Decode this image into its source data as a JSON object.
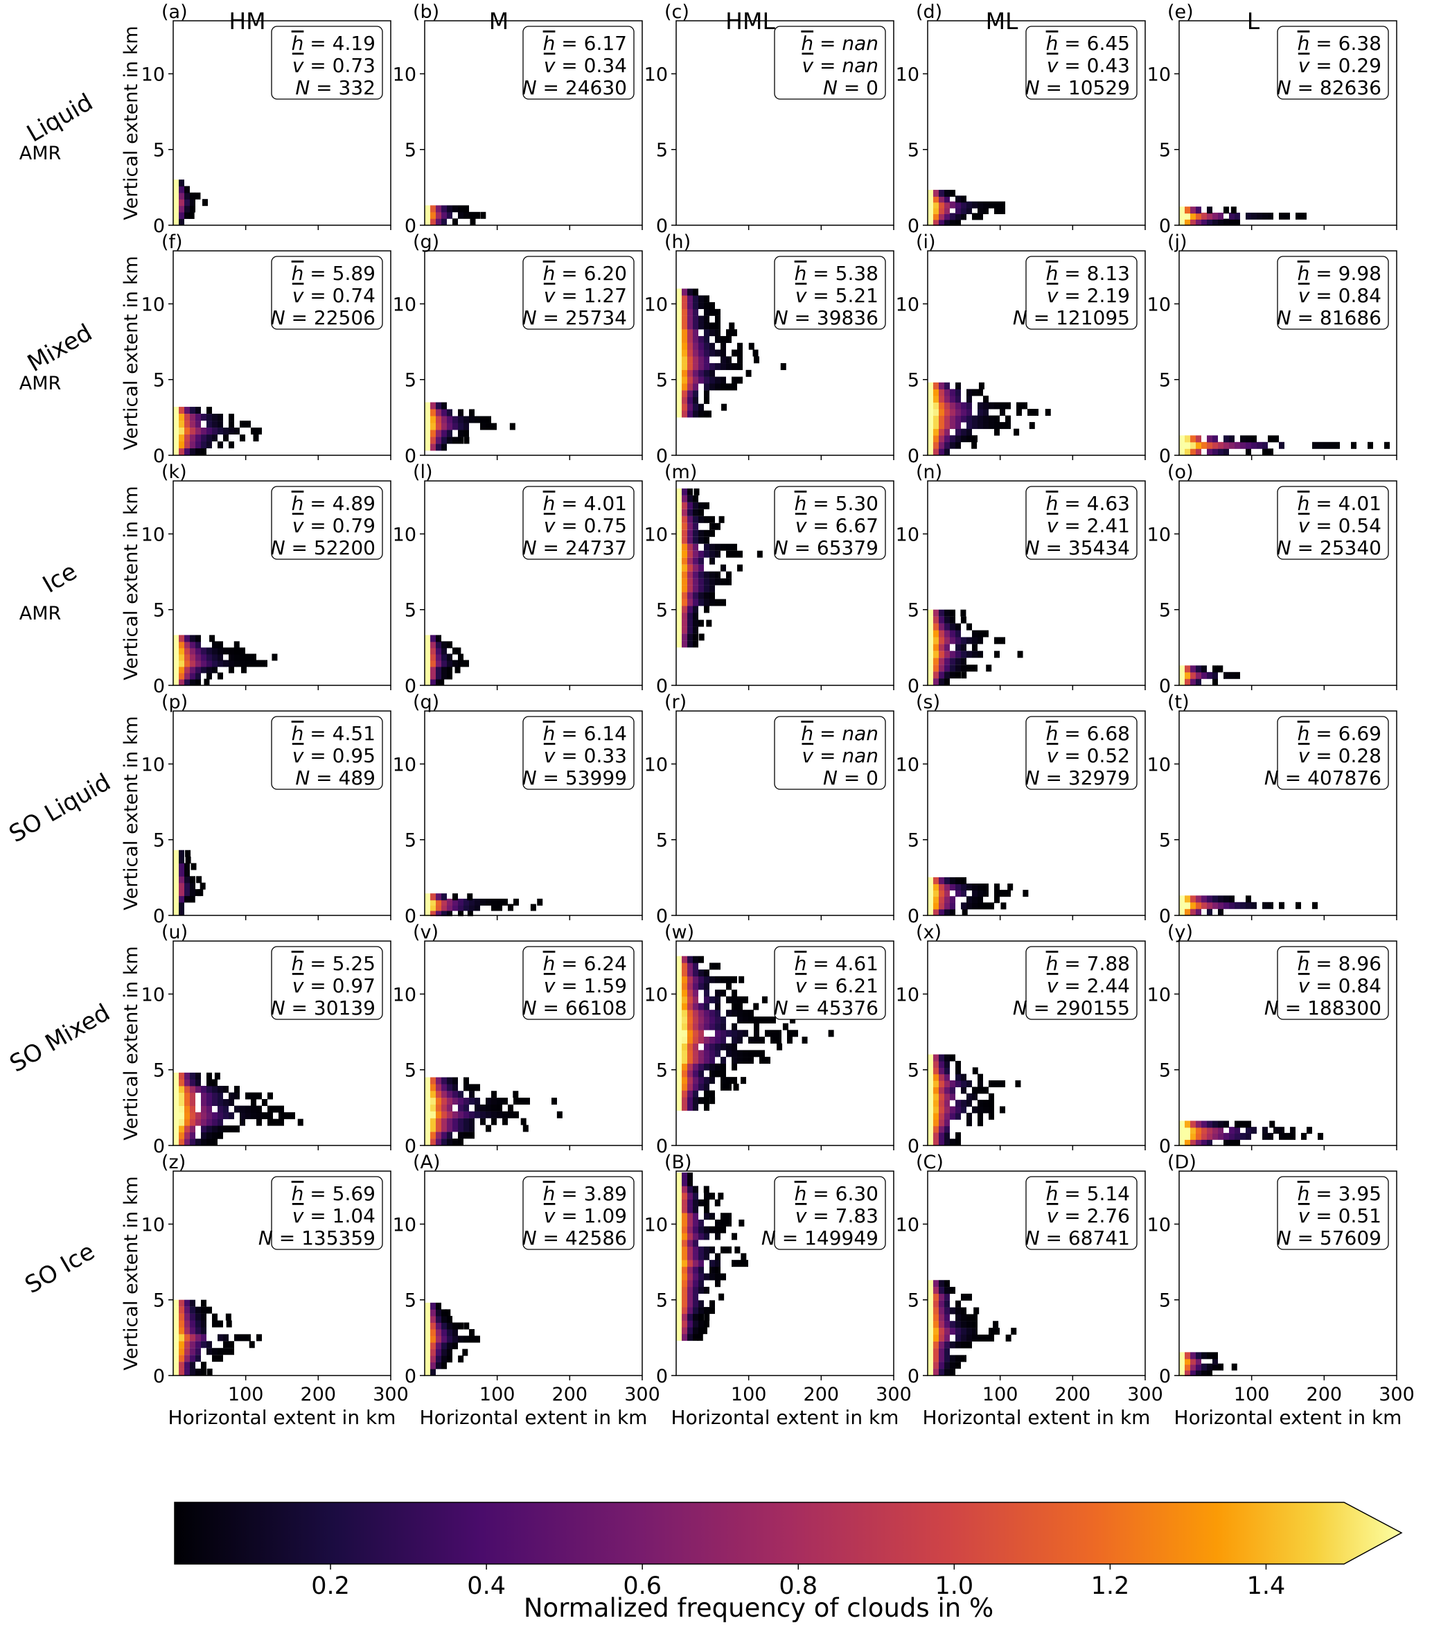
{
  "figure": {
    "columns": [
      "HM",
      "M",
      "HML",
      "ML",
      "L"
    ],
    "row_labels": [
      {
        "main": "Liquid",
        "sub": "AMR"
      },
      {
        "main": "Mixed",
        "sub": "AMR"
      },
      {
        "main": "Ice",
        "sub": "AMR"
      },
      {
        "main": "SO Liquid",
        "sub": ""
      },
      {
        "main": "SO Mixed",
        "sub": ""
      },
      {
        "main": "SO Ice",
        "sub": ""
      }
    ],
    "ylabel": "Vertical extent in km",
    "xlabel": "Horizontal extent in km",
    "colorbar": {
      "label": "Normalized frequency of clouds in %",
      "ticks": [
        "0.2",
        "0.4",
        "0.6",
        "0.8",
        "1.0",
        "1.2",
        "1.4"
      ],
      "tick_values": [
        0.2,
        0.4,
        0.6,
        0.8,
        1.0,
        1.2,
        1.4
      ],
      "range": [
        0,
        1.6
      ],
      "extend": "max",
      "colormap": "inferno",
      "colors": [
        "#000004",
        "#420a68",
        "#932667",
        "#dd513a",
        "#fca50a",
        "#fcffa4"
      ]
    },
    "stat_labels": {
      "h": "h",
      "v": "v",
      "N": "N"
    }
  },
  "chart_data": [
    {
      "panel": "(a)",
      "row": "AMR Liquid",
      "column": "HM",
      "type": "heatmap",
      "xlim": [
        0,
        300
      ],
      "ylim": [
        0,
        13.5
      ],
      "x_ticks": [
        100,
        200,
        300
      ],
      "y_ticks": [
        0,
        5,
        10
      ],
      "h": "4.19",
      "v": "0.73",
      "N": "332",
      "extent": {
        "x_max": 40,
        "y_top": 3.0,
        "y_bottom": 0,
        "spread": 0.3
      }
    },
    {
      "panel": "(b)",
      "row": "AMR Liquid",
      "column": "M",
      "type": "heatmap",
      "xlim": [
        0,
        300
      ],
      "ylim": [
        0,
        13.5
      ],
      "x_ticks": [
        100,
        200,
        300
      ],
      "y_ticks": [
        0,
        5,
        10
      ],
      "h": "6.17",
      "v": "0.34",
      "N": "24630",
      "extent": {
        "x_max": 115,
        "y_top": 1.3,
        "y_bottom": 0,
        "spread": 0.4
      }
    },
    {
      "panel": "(c)",
      "row": "AMR Liquid",
      "column": "HML",
      "type": "heatmap",
      "xlim": [
        0,
        300
      ],
      "ylim": [
        0,
        13.5
      ],
      "x_ticks": [
        100,
        200,
        300
      ],
      "y_ticks": [
        0,
        5,
        10
      ],
      "h": "nan",
      "v": "nan",
      "N": "0",
      "extent": null
    },
    {
      "panel": "(d)",
      "row": "AMR Liquid",
      "column": "ML",
      "type": "heatmap",
      "xlim": [
        0,
        300
      ],
      "ylim": [
        0,
        13.5
      ],
      "x_ticks": [
        100,
        200,
        300
      ],
      "y_ticks": [
        0,
        5,
        10
      ],
      "h": "6.45",
      "v": "0.43",
      "N": "10529",
      "extent": {
        "x_max": 150,
        "y_top": 2.3,
        "y_bottom": 0,
        "spread": 0.35
      }
    },
    {
      "panel": "(e)",
      "row": "AMR Liquid",
      "column": "L",
      "type": "heatmap",
      "xlim": [
        0,
        300
      ],
      "ylim": [
        0,
        13.5
      ],
      "x_ticks": [
        100,
        200,
        300
      ],
      "y_ticks": [
        0,
        5,
        10
      ],
      "h": "6.38",
      "v": "0.29",
      "N": "82636",
      "extent": {
        "x_max": 200,
        "y_top": 1.2,
        "y_bottom": 0,
        "spread": 0.5
      }
    },
    {
      "panel": "(f)",
      "row": "AMR Mixed",
      "column": "HM",
      "type": "heatmap",
      "xlim": [
        0,
        300
      ],
      "ylim": [
        0,
        13.5
      ],
      "x_ticks": [
        100,
        200,
        300
      ],
      "y_ticks": [
        0,
        5,
        10
      ],
      "h": "5.89",
      "v": "0.74",
      "N": "22506",
      "extent": {
        "x_max": 170,
        "y_top": 3.2,
        "y_bottom": 0,
        "spread": 0.4
      }
    },
    {
      "panel": "(g)",
      "row": "AMR Mixed",
      "column": "M",
      "type": "heatmap",
      "xlim": [
        0,
        300
      ],
      "ylim": [
        0,
        13.5
      ],
      "x_ticks": [
        100,
        200,
        300
      ],
      "y_ticks": [
        0,
        5,
        10
      ],
      "h": "6.20",
      "v": "1.27",
      "N": "25734",
      "extent": {
        "x_max": 130,
        "y_top": 3.5,
        "y_bottom": 0.3,
        "spread": 0.5
      }
    },
    {
      "panel": "(h)",
      "row": "AMR Mixed",
      "column": "HML",
      "type": "heatmap",
      "xlim": [
        0,
        300
      ],
      "ylim": [
        0,
        13.5
      ],
      "x_ticks": [
        100,
        200,
        300
      ],
      "y_ticks": [
        0,
        5,
        10
      ],
      "h": "5.38",
      "v": "5.21",
      "N": "39836",
      "extent": {
        "x_max": 140,
        "y_top": 11.0,
        "y_bottom": 2.5,
        "spread": 0.5
      }
    },
    {
      "panel": "(i)",
      "row": "AMR Mixed",
      "column": "ML",
      "type": "heatmap",
      "xlim": [
        0,
        300
      ],
      "ylim": [
        0,
        13.5
      ],
      "x_ticks": [
        100,
        200,
        300
      ],
      "y_ticks": [
        0,
        5,
        10
      ],
      "h": "8.13",
      "v": "2.19",
      "N": "121095",
      "extent": {
        "x_max": 190,
        "y_top": 4.8,
        "y_bottom": 0,
        "spread": 0.6
      }
    },
    {
      "panel": "(j)",
      "row": "AMR Mixed",
      "column": "L",
      "type": "heatmap",
      "xlim": [
        0,
        300
      ],
      "ylim": [
        0,
        13.5
      ],
      "x_ticks": [
        100,
        200,
        300
      ],
      "y_ticks": [
        0,
        5,
        10
      ],
      "h": "9.98",
      "v": "0.84",
      "N": "81686",
      "extent": {
        "x_max": 290,
        "y_top": 1.3,
        "y_bottom": 0,
        "spread": 0.6
      }
    },
    {
      "panel": "(k)",
      "row": "AMR Ice",
      "column": "HM",
      "type": "heatmap",
      "xlim": [
        0,
        300
      ],
      "ylim": [
        0,
        13.5
      ],
      "x_ticks": [
        100,
        200,
        300
      ],
      "y_ticks": [
        0,
        5,
        10
      ],
      "h": "4.89",
      "v": "0.79",
      "N": "52200",
      "extent": {
        "x_max": 160,
        "y_top": 3.3,
        "y_bottom": 0,
        "spread": 0.4
      }
    },
    {
      "panel": "(l)",
      "row": "AMR Ice",
      "column": "M",
      "type": "heatmap",
      "xlim": [
        0,
        300
      ],
      "ylim": [
        0,
        13.5
      ],
      "x_ticks": [
        100,
        200,
        300
      ],
      "y_ticks": [
        0,
        5,
        10
      ],
      "h": "4.01",
      "v": "0.75",
      "N": "24737",
      "extent": {
        "x_max": 65,
        "y_top": 3.3,
        "y_bottom": 0,
        "spread": 0.4
      }
    },
    {
      "panel": "(m)",
      "row": "AMR Ice",
      "column": "HML",
      "type": "heatmap",
      "xlim": [
        0,
        300
      ],
      "ylim": [
        0,
        13.5
      ],
      "x_ticks": [
        100,
        200,
        300
      ],
      "y_ticks": [
        0,
        5,
        10
      ],
      "h": "5.30",
      "v": "6.67",
      "N": "65379",
      "extent": {
        "x_max": 105,
        "y_top": 13.0,
        "y_bottom": 2.5,
        "spread": 0.55
      }
    },
    {
      "panel": "(n)",
      "row": "AMR Ice",
      "column": "ML",
      "type": "heatmap",
      "xlim": [
        0,
        300
      ],
      "ylim": [
        0,
        13.5
      ],
      "x_ticks": [
        100,
        200,
        300
      ],
      "y_ticks": [
        0,
        5,
        10
      ],
      "h": "4.63",
      "v": "2.41",
      "N": "35434",
      "extent": {
        "x_max": 125,
        "y_top": 5.0,
        "y_bottom": 0,
        "spread": 0.4
      }
    },
    {
      "panel": "(o)",
      "row": "AMR Ice",
      "column": "L",
      "type": "heatmap",
      "xlim": [
        0,
        300
      ],
      "ylim": [
        0,
        13.5
      ],
      "x_ticks": [
        100,
        200,
        300
      ],
      "y_ticks": [
        0,
        5,
        10
      ],
      "h": "4.01",
      "v": "0.54",
      "N": "25340",
      "extent": {
        "x_max": 115,
        "y_top": 1.3,
        "y_bottom": 0,
        "spread": 0.45
      }
    },
    {
      "panel": "(p)",
      "row": "SO Liquid",
      "column": "HM",
      "type": "heatmap",
      "xlim": [
        0,
        300
      ],
      "ylim": [
        0,
        13.5
      ],
      "x_ticks": [
        100,
        200,
        300
      ],
      "y_ticks": [
        0,
        5,
        10
      ],
      "h": "4.51",
      "v": "0.95",
      "N": "489",
      "extent": {
        "x_max": 45,
        "y_top": 4.3,
        "y_bottom": 0,
        "spread": 0.3
      }
    },
    {
      "panel": "(q)",
      "row": "SO Liquid",
      "column": "M",
      "type": "heatmap",
      "xlim": [
        0,
        300
      ],
      "ylim": [
        0,
        13.5
      ],
      "x_ticks": [
        100,
        200,
        300
      ],
      "y_ticks": [
        0,
        5,
        10
      ],
      "h": "6.14",
      "v": "0.33",
      "N": "53999",
      "extent": {
        "x_max": 155,
        "y_top": 1.4,
        "y_bottom": 0,
        "spread": 0.45
      }
    },
    {
      "panel": "(r)",
      "row": "SO Liquid",
      "column": "HML",
      "type": "heatmap",
      "xlim": [
        0,
        300
      ],
      "ylim": [
        0,
        13.5
      ],
      "x_ticks": [
        100,
        200,
        300
      ],
      "y_ticks": [
        0,
        5,
        10
      ],
      "h": "nan",
      "v": "nan",
      "N": "0",
      "extent": null
    },
    {
      "panel": "(s)",
      "row": "SO Liquid",
      "column": "ML",
      "type": "heatmap",
      "xlim": [
        0,
        300
      ],
      "ylim": [
        0,
        13.5
      ],
      "x_ticks": [
        100,
        200,
        300
      ],
      "y_ticks": [
        0,
        5,
        10
      ],
      "h": "6.68",
      "v": "0.52",
      "N": "32979",
      "extent": {
        "x_max": 170,
        "y_top": 2.5,
        "y_bottom": 0,
        "spread": 0.45
      }
    },
    {
      "panel": "(t)",
      "row": "SO Liquid",
      "column": "L",
      "type": "heatmap",
      "xlim": [
        0,
        300
      ],
      "ylim": [
        0,
        13.5
      ],
      "x_ticks": [
        100,
        200,
        300
      ],
      "y_ticks": [
        0,
        5,
        10
      ],
      "h": "6.69",
      "v": "0.28",
      "N": "407876",
      "extent": {
        "x_max": 210,
        "y_top": 1.3,
        "y_bottom": 0,
        "spread": 0.55
      }
    },
    {
      "panel": "(u)",
      "row": "SO Mixed",
      "column": "HM",
      "type": "heatmap",
      "xlim": [
        0,
        300
      ],
      "ylim": [
        0,
        13.5
      ],
      "x_ticks": [
        100,
        200,
        300
      ],
      "y_ticks": [
        0,
        5,
        10
      ],
      "h": "5.25",
      "v": "0.97",
      "N": "30139",
      "extent": {
        "x_max": 205,
        "y_top": 4.8,
        "y_bottom": 0,
        "spread": 0.45
      }
    },
    {
      "panel": "(v)",
      "row": "SO Mixed",
      "column": "M",
      "type": "heatmap",
      "xlim": [
        0,
        300
      ],
      "ylim": [
        0,
        13.5
      ],
      "x_ticks": [
        100,
        200,
        300
      ],
      "y_ticks": [
        0,
        5,
        10
      ],
      "h": "6.24",
      "v": "1.59",
      "N": "66108",
      "extent": {
        "x_max": 215,
        "y_top": 4.5,
        "y_bottom": 0,
        "spread": 0.55
      }
    },
    {
      "panel": "(w)",
      "row": "SO Mixed",
      "column": "HML",
      "type": "heatmap",
      "xlim": [
        0,
        300
      ],
      "ylim": [
        0,
        13.5
      ],
      "x_ticks": [
        100,
        200,
        300
      ],
      "y_ticks": [
        0,
        5,
        10
      ],
      "h": "4.61",
      "v": "6.21",
      "N": "45376",
      "extent": {
        "x_max": 180,
        "y_top": 12.5,
        "y_bottom": 2.3,
        "spread": 0.5
      }
    },
    {
      "panel": "(x)",
      "row": "SO Mixed",
      "column": "ML",
      "type": "heatmap",
      "xlim": [
        0,
        300
      ],
      "ylim": [
        0,
        13.5
      ],
      "x_ticks": [
        100,
        200,
        300
      ],
      "y_ticks": [
        0,
        5,
        10
      ],
      "h": "7.88",
      "v": "2.44",
      "N": "290155",
      "extent": {
        "x_max": 150,
        "y_top": 6.0,
        "y_bottom": 0,
        "spread": 0.6
      }
    },
    {
      "panel": "(y)",
      "row": "SO Mixed",
      "column": "L",
      "type": "heatmap",
      "xlim": [
        0,
        300
      ],
      "ylim": [
        0,
        13.5
      ],
      "x_ticks": [
        100,
        200,
        300
      ],
      "y_ticks": [
        0,
        5,
        10
      ],
      "h": "8.96",
      "v": "0.84",
      "N": "188300",
      "extent": {
        "x_max": 280,
        "y_top": 1.6,
        "y_bottom": 0,
        "spread": 0.6
      }
    },
    {
      "panel": "(z)",
      "row": "SO Ice",
      "column": "HM",
      "type": "heatmap",
      "xlim": [
        0,
        300
      ],
      "ylim": [
        0,
        13.5
      ],
      "x_ticks": [
        100,
        200,
        300
      ],
      "y_ticks": [
        0,
        5,
        10
      ],
      "h": "5.69",
      "v": "1.04",
      "N": "135359",
      "extent": {
        "x_max": 140,
        "y_top": 5.0,
        "y_bottom": 0,
        "spread": 0.45
      }
    },
    {
      "panel": "(A)",
      "row": "SO Ice",
      "column": "M",
      "type": "heatmap",
      "xlim": [
        0,
        300
      ],
      "ylim": [
        0,
        13.5
      ],
      "x_ticks": [
        100,
        200,
        300
      ],
      "y_ticks": [
        0,
        5,
        10
      ],
      "h": "3.89",
      "v": "1.09",
      "N": "42586",
      "extent": {
        "x_max": 75,
        "y_top": 4.8,
        "y_bottom": 0,
        "spread": 0.4
      }
    },
    {
      "panel": "(B)",
      "row": "SO Ice",
      "column": "HML",
      "type": "heatmap",
      "xlim": [
        0,
        300
      ],
      "ylim": [
        0,
        13.5
      ],
      "x_ticks": [
        100,
        200,
        300
      ],
      "y_ticks": [
        0,
        5,
        10
      ],
      "h": "6.30",
      "v": "7.83",
      "N": "149949",
      "extent": {
        "x_max": 110,
        "y_top": 13.4,
        "y_bottom": 2.3,
        "spread": 0.6
      }
    },
    {
      "panel": "(C)",
      "row": "SO Ice",
      "column": "ML",
      "type": "heatmap",
      "xlim": [
        0,
        300
      ],
      "ylim": [
        0,
        13.5
      ],
      "x_ticks": [
        100,
        200,
        300
      ],
      "y_ticks": [
        0,
        5,
        10
      ],
      "h": "5.14",
      "v": "2.76",
      "N": "68741",
      "extent": {
        "x_max": 110,
        "y_top": 6.3,
        "y_bottom": 0,
        "spread": 0.45
      }
    },
    {
      "panel": "(D)",
      "row": "SO Ice",
      "column": "L",
      "type": "heatmap",
      "xlim": [
        0,
        300
      ],
      "ylim": [
        0,
        13.5
      ],
      "x_ticks": [
        100,
        200,
        300
      ],
      "y_ticks": [
        0,
        5,
        10
      ],
      "h": "3.95",
      "v": "0.51",
      "N": "57609",
      "extent": {
        "x_max": 125,
        "y_top": 1.5,
        "y_bottom": 0,
        "spread": 0.4
      }
    }
  ]
}
